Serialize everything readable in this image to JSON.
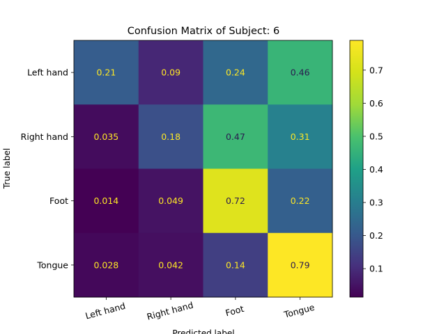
{
  "chart_data": {
    "type": "heatmap",
    "title": "Confusion Matrix of Subject: 6",
    "xlabel": "Predicted label",
    "ylabel": "True label",
    "row_labels": [
      "Left hand",
      "Right hand",
      "Foot",
      "Tongue"
    ],
    "col_labels": [
      "Left hand",
      "Right hand",
      "Foot",
      "Tongue"
    ],
    "values": [
      [
        0.21,
        0.09,
        0.24,
        0.46
      ],
      [
        0.035,
        0.18,
        0.47,
        0.31
      ],
      [
        0.014,
        0.049,
        0.72,
        0.22
      ],
      [
        0.028,
        0.042,
        0.14,
        0.79
      ]
    ],
    "cell_labels": [
      [
        "0.21",
        "0.09",
        "0.24",
        "0.46"
      ],
      [
        "0.035",
        "0.18",
        "0.47",
        "0.31"
      ],
      [
        "0.014",
        "0.049",
        "0.72",
        "0.22"
      ],
      [
        "0.028",
        "0.042",
        "0.14",
        "0.79"
      ]
    ],
    "colormap": "viridis",
    "color_range": [
      0.014,
      0.79
    ],
    "colorbar_ticks": [
      "0.1",
      "0.2",
      "0.3",
      "0.4",
      "0.5",
      "0.6",
      "0.7"
    ],
    "grid": false
  }
}
